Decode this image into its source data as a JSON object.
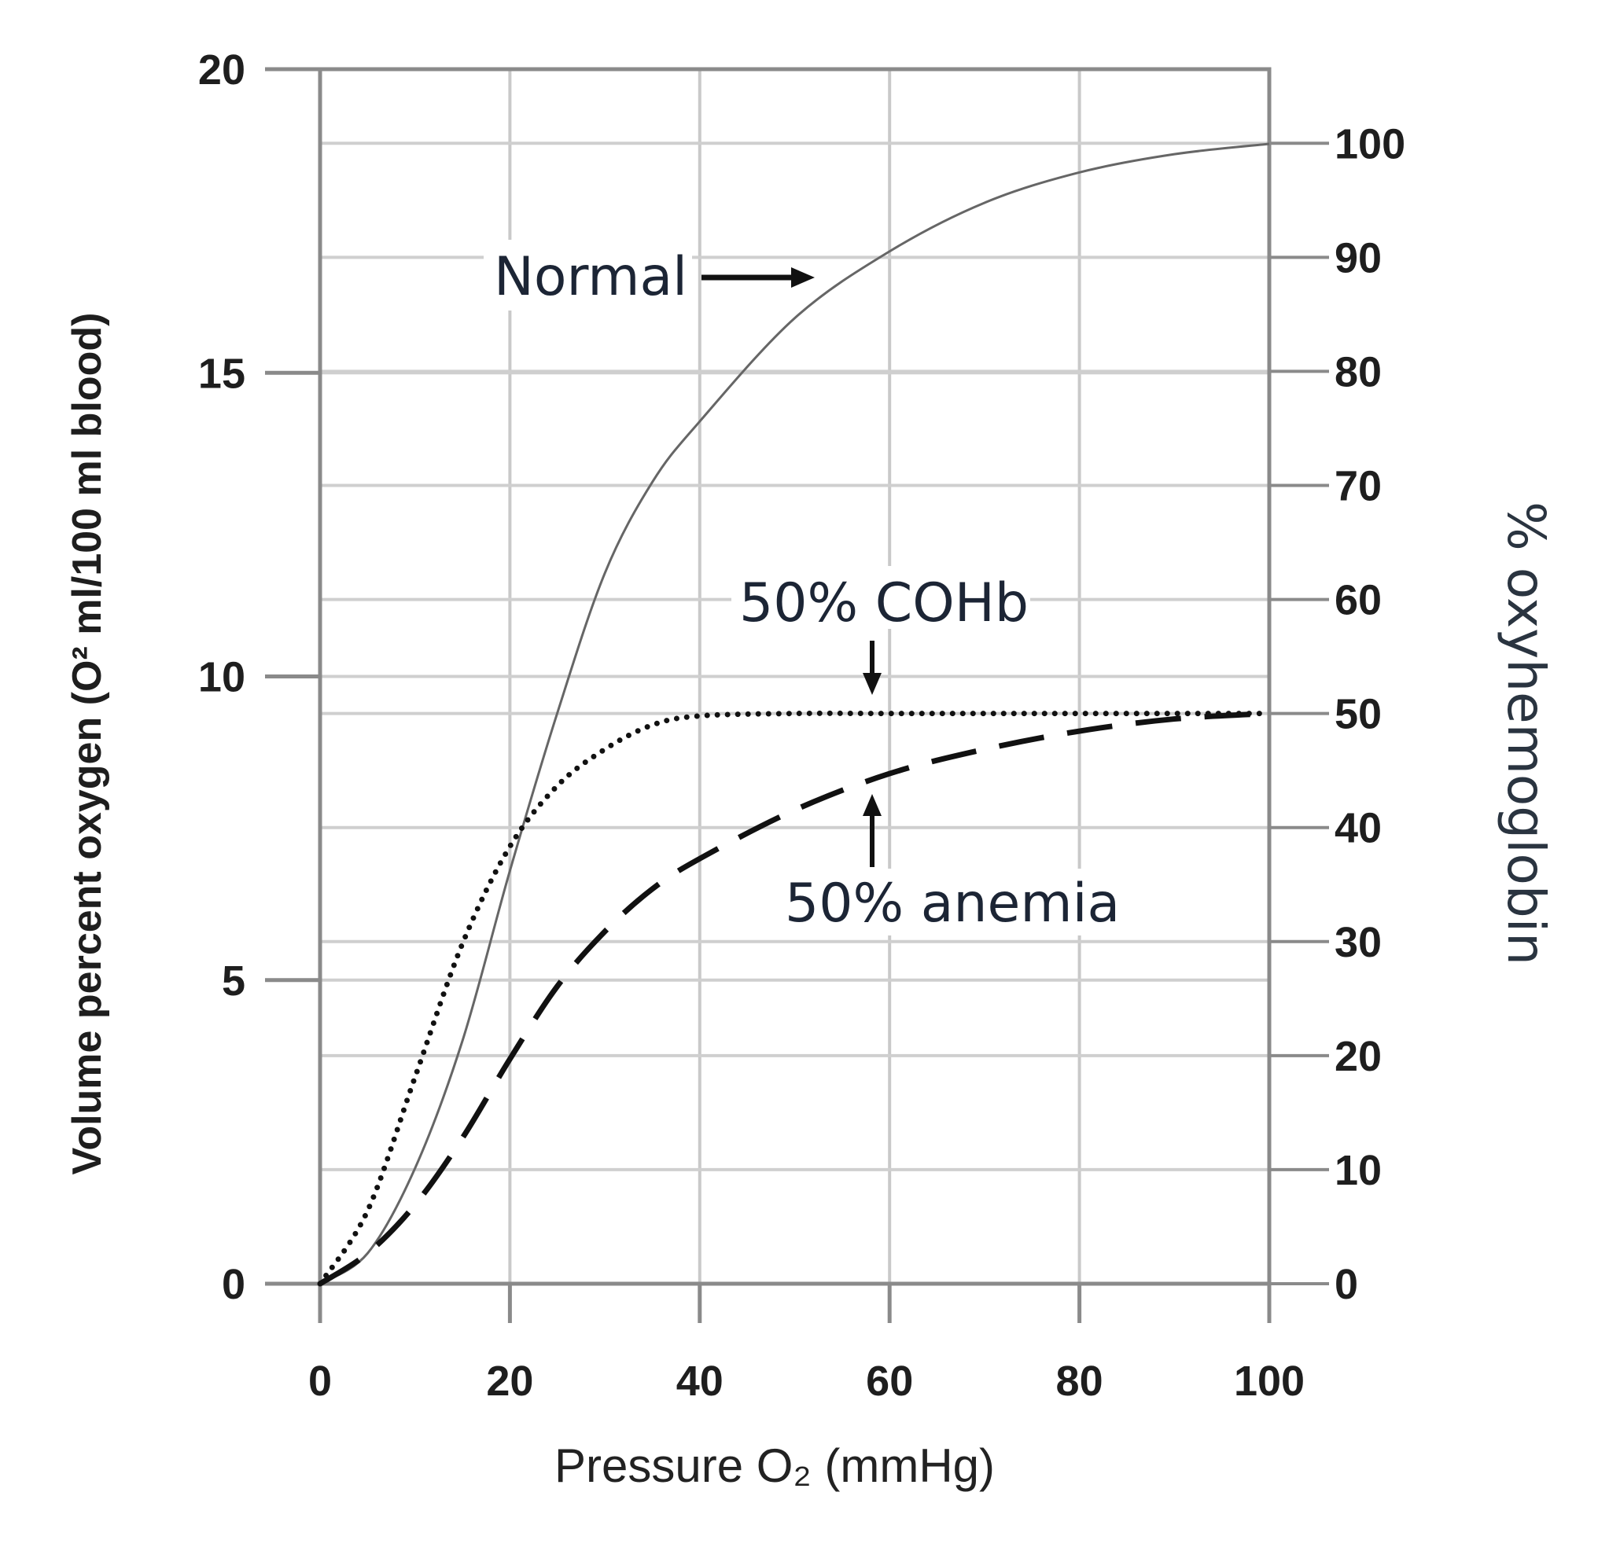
{
  "chart_data": {
    "type": "line",
    "xlabel": "Pressure O₂ (mmHg)",
    "ylabel": "Volume percent oxygen (O² ml/100 ml blood)",
    "ylabel_right": "% oxyhemoglobin",
    "xlim": [
      0,
      100
    ],
    "ylim": [
      0,
      20
    ],
    "ylim_right": [
      0,
      106.5
    ],
    "x_ticks": [
      "0",
      "20",
      "40",
      "60",
      "80",
      "100"
    ],
    "y_ticks": [
      "0",
      "5",
      "10",
      "15",
      "20"
    ],
    "y_ticks_right": [
      "0",
      "10",
      "20",
      "30",
      "40",
      "50",
      "60",
      "70",
      "80",
      "90",
      "100"
    ],
    "grid": true,
    "x": [
      0,
      5,
      10,
      15,
      20,
      25,
      30,
      35,
      40,
      50,
      60,
      70,
      80,
      90,
      100
    ],
    "series": [
      {
        "name": "Normal",
        "style": "solid",
        "color": "#666666",
        "values": [
          0,
          0.5,
          1.9,
          4.0,
          6.8,
          9.4,
          11.7,
          13.2,
          14.2,
          15.9,
          17.0,
          17.8,
          18.3,
          18.6,
          18.77
        ]
      },
      {
        "name": "50% COHb",
        "style": "dotted",
        "color": "#111111",
        "values": [
          0,
          1.2,
          3.4,
          5.6,
          7.2,
          8.2,
          8.8,
          9.2,
          9.35,
          9.39,
          9.39,
          9.39,
          9.39,
          9.39,
          9.39
        ]
      },
      {
        "name": "50% anemia",
        "style": "dashed",
        "color": "#111111",
        "values": [
          0,
          0.5,
          1.3,
          2.4,
          3.7,
          4.9,
          5.8,
          6.5,
          7.0,
          7.8,
          8.4,
          8.8,
          9.1,
          9.3,
          9.39
        ]
      }
    ],
    "annotations": [
      {
        "text": "Normal",
        "arrow": "right"
      },
      {
        "text": "50% COHb",
        "arrow": "down"
      },
      {
        "text": "50% anemia",
        "arrow": "up"
      }
    ]
  }
}
